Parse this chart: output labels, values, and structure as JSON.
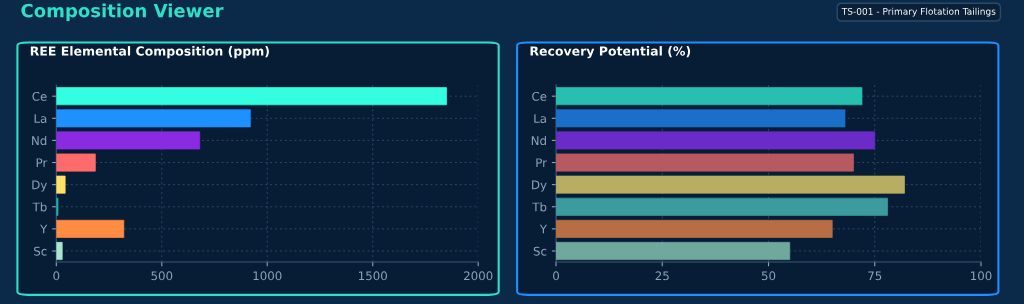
{
  "chart_data": [
    {
      "type": "bar",
      "title": "REE Elemental Composition (ppm)",
      "orientation": "horizontal",
      "annotations": [
        "Composition Viewer",
        "TS-001 - Primary Flotation Tailings"
      ],
      "categories": [
        "Ce",
        "La",
        "Nd",
        "Pr",
        "Dy",
        "Tb",
        "Y",
        "Sc"
      ],
      "values": [
        1850,
        920,
        680,
        185,
        42,
        8,
        320,
        28
      ],
      "colors": [
        "#33ffe0",
        "#1e90ff",
        "#8a2be2",
        "#ff6b6b",
        "#ffe066",
        "#20b2aa",
        "#ff8c42",
        "#a8e6cf"
      ],
      "xlim": [
        0,
        2000
      ],
      "xticks": [
        0,
        500,
        1000,
        1500,
        2000
      ],
      "grid": true,
      "legend": false
    },
    {
      "type": "bar",
      "title": "Recovery Potential (%)",
      "orientation": "horizontal",
      "categories": [
        "Ce",
        "La",
        "Nd",
        "Pr",
        "Dy",
        "Tb",
        "Y",
        "Sc"
      ],
      "values": [
        72,
        68,
        75,
        70,
        82,
        78,
        65,
        55
      ],
      "colors": [
        "#26bfb0",
        "#1a70c8",
        "#6a2bc8",
        "#b85860",
        "#b8ad62",
        "#3c9b9e",
        "#b86e42",
        "#70a89e"
      ],
      "xlim": [
        0,
        100
      ],
      "xticks": [
        0,
        25,
        50,
        75,
        100
      ],
      "grid": true,
      "legend": false
    }
  ]
}
